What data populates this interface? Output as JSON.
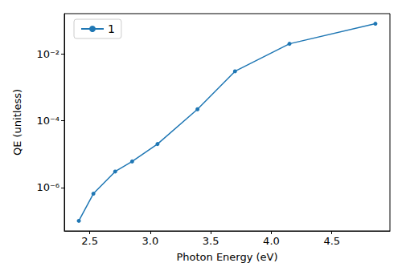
{
  "chart_data": {
    "type": "line",
    "x_label": "Photon Energy (eV)",
    "y_label": "QE (unitless)",
    "log": "y",
    "legend": "upper left",
    "marker": "circle",
    "line_style": "solid",
    "x": [
      2.41,
      2.53,
      2.71,
      2.85,
      3.06,
      3.39,
      3.7,
      4.15,
      4.86
    ],
    "series": [
      {
        "name": "1",
        "color": "#1f77b4",
        "values": [
          1e-07,
          6.5e-07,
          3e-06,
          6e-06,
          2e-05,
          0.00022,
          0.003,
          0.02,
          0.08
        ]
      }
    ],
    "xlim": [
      2.29,
      4.98
    ],
    "xticks": [
      {
        "value": 2.5,
        "label": "2.5"
      },
      {
        "value": 3.0,
        "label": "3.0"
      },
      {
        "value": 3.5,
        "label": "3.5"
      },
      {
        "value": 4.0,
        "label": "4.0"
      },
      {
        "value": 4.5,
        "label": "4.5"
      }
    ],
    "ylim": [
      5e-08,
      0.16
    ],
    "yticks": [
      {
        "value": 1e-06,
        "label": "10⁻⁶"
      },
      {
        "value": 0.0001,
        "label": "10⁻⁴"
      },
      {
        "value": 0.01,
        "label": "10⁻²"
      }
    ]
  }
}
